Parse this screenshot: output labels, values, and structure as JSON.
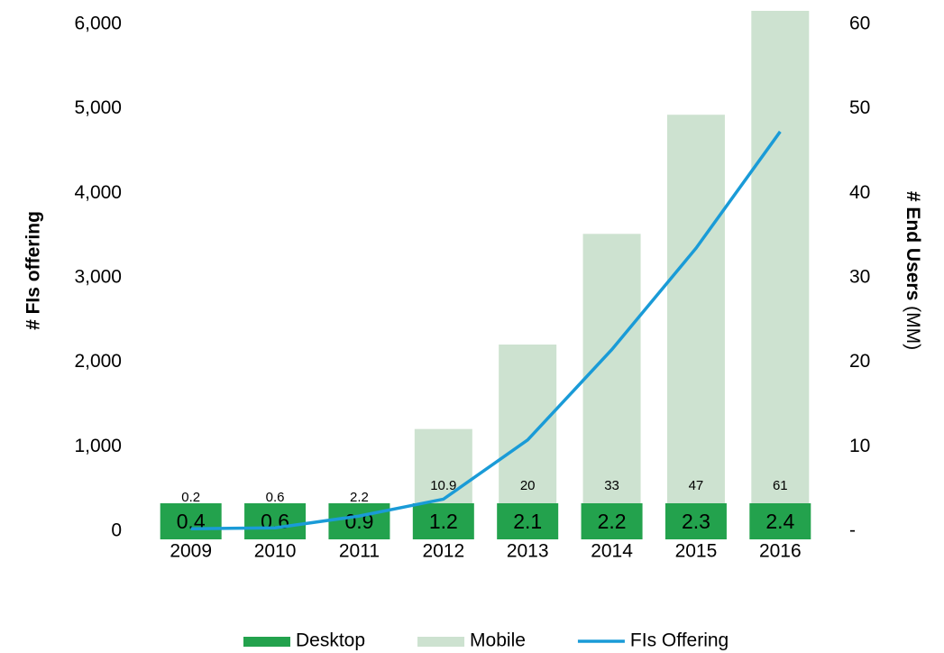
{
  "chart_data": {
    "type": "bar_line",
    "ylabel": "# FIs offering",
    "y2label": "# End Users",
    "y2label_unit": "(MM)",
    "categories": [
      "2009",
      "2010",
      "2011",
      "2012",
      "2013",
      "2014",
      "2015",
      "2016"
    ],
    "series": [
      {
        "name": "Desktop",
        "type": "bar",
        "axis": "y2",
        "color": "#23a24d",
        "values": [
          0.4,
          0.6,
          0.9,
          1.2,
          2.1,
          2.2,
          2.3,
          2.4
        ]
      },
      {
        "name": "Mobile",
        "type": "bar",
        "axis": "y2",
        "color": "#cde2d0",
        "values": [
          0.2,
          0.6,
          2.2,
          10.9,
          20,
          33,
          47,
          61
        ]
      },
      {
        "name": "FIs Offering",
        "type": "line",
        "axis": "y",
        "color": "#1a9bd7",
        "values": [
          30,
          40,
          180,
          380,
          1080,
          2150,
          3350,
          4730
        ]
      }
    ],
    "stacked": true,
    "ylim": [
      0,
      6000
    ],
    "yticks": [
      0,
      {
        "value": 1000,
        "label": "1,000"
      },
      {
        "value": 2000,
        "label": "2,000"
      },
      {
        "value": 3000,
        "label": "3,000"
      },
      {
        "value": 4000,
        "label": "4,000"
      },
      {
        "value": 5000,
        "label": "5,000"
      },
      {
        "value": 6000,
        "label": "6,000"
      }
    ],
    "y2lim": [
      0,
      60
    ],
    "y2ticks": [
      {
        "value": 0,
        "label": "-"
      },
      10,
      20,
      30,
      40,
      50,
      60
    ],
    "legend": "bottom"
  }
}
